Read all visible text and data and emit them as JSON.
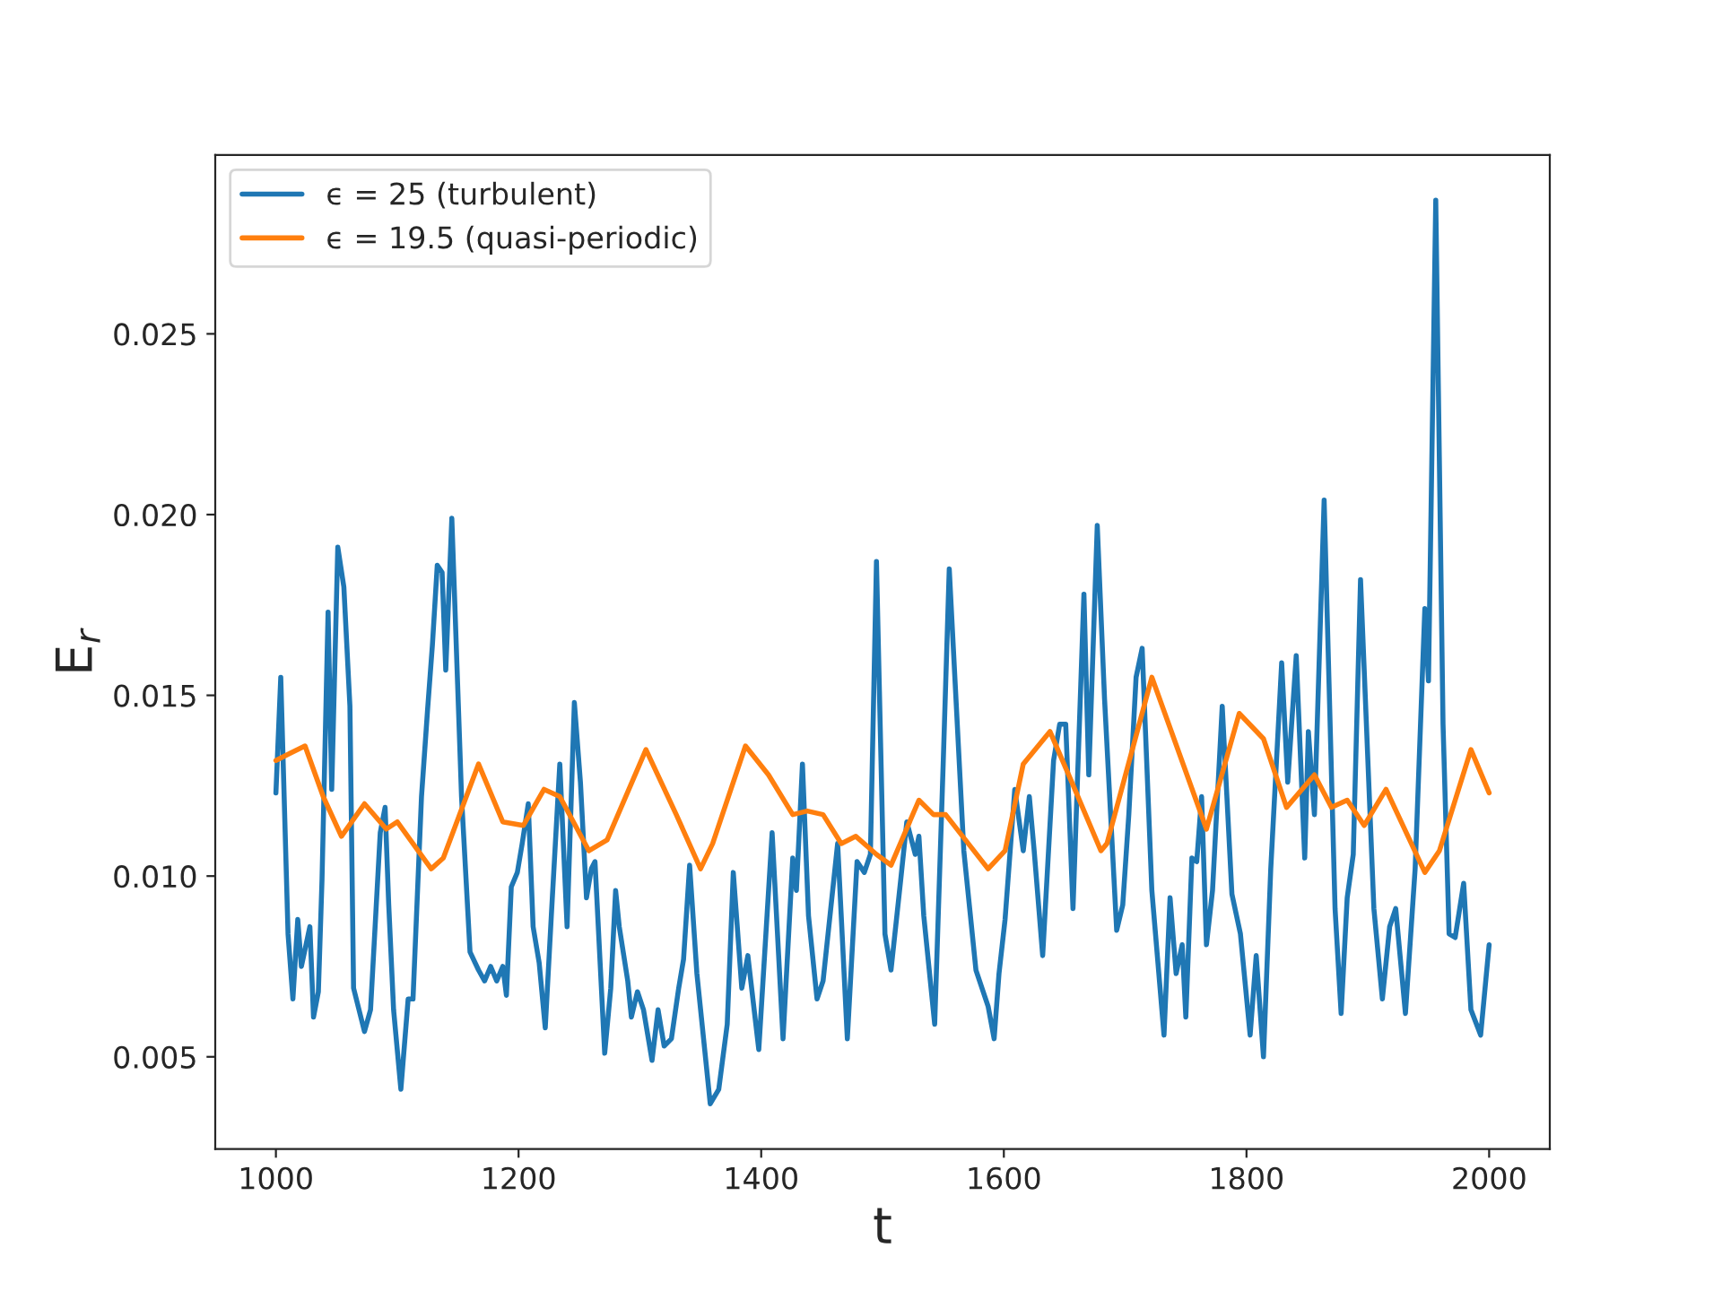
{
  "chart_data": {
    "type": "line",
    "xlabel": "t",
    "ylabel": "E$_{r}$",
    "legend": "top left",
    "grid": false,
    "xlim": [
      950,
      2050
    ],
    "ylim": [
      0.00245,
      0.02995
    ],
    "xticks": [
      1000,
      1200,
      1400,
      1600,
      1800,
      2000
    ],
    "yticks": [
      0.005,
      {
        "value": 0.01,
        "label": "0.010"
      },
      0.015,
      {
        "value": 0.02,
        "label": "0.020"
      },
      0.025
    ],
    "series": [
      {
        "name": "ϵ = 25 (turbulent)",
        "color": "#1f77b4",
        "x": [
          1000,
          1004,
          1010,
          1014,
          1018,
          1021,
          1028,
          1031,
          1035,
          1038,
          1043,
          1046,
          1051,
          1056,
          1061,
          1064,
          1073,
          1078,
          1086,
          1090,
          1093,
          1097,
          1103,
          1109,
          1113,
          1120,
          1125,
          1129,
          1133,
          1137,
          1140,
          1145,
          1153,
          1160,
          1167,
          1172,
          1177,
          1182,
          1187,
          1190,
          1194,
          1199,
          1203,
          1208,
          1212,
          1217,
          1222,
          1227,
          1234,
          1240,
          1246,
          1251,
          1256,
          1260,
          1263,
          1271,
          1276,
          1280,
          1283,
          1290,
          1293,
          1298,
          1303,
          1310,
          1315,
          1320,
          1326,
          1332,
          1336,
          1341,
          1347,
          1358,
          1365,
          1372,
          1377,
          1384,
          1389,
          1398,
          1409,
          1418,
          1426,
          1429,
          1434,
          1439,
          1446,
          1451,
          1463,
          1471,
          1479,
          1485,
          1490,
          1495,
          1502,
          1507,
          1515,
          1520,
          1527,
          1530,
          1534,
          1543,
          1550,
          1555,
          1567,
          1577,
          1587,
          1592,
          1596,
          1601,
          1609,
          1616,
          1621,
          1625,
          1632,
          1641,
          1646,
          1651,
          1657,
          1666,
          1670,
          1677,
          1683,
          1693,
          1698,
          1703,
          1709,
          1714,
          1722,
          1732,
          1737,
          1742,
          1747,
          1750,
          1755,
          1759,
          1763,
          1767,
          1772,
          1780,
          1788,
          1795,
          1803,
          1808,
          1814,
          1820,
          1829,
          1834,
          1841,
          1848,
          1851,
          1856,
          1864,
          1873,
          1878,
          1883,
          1888,
          1894,
          1905,
          1912,
          1918,
          1923,
          1931,
          1939,
          1947,
          1950,
          1956,
          1962,
          1967,
          1972,
          1979,
          1985,
          1993,
          2000
        ],
        "values": [
          0.0123,
          0.0155,
          0.0084,
          0.0066,
          0.0088,
          0.0075,
          0.0086,
          0.0061,
          0.0068,
          0.0099,
          0.0173,
          0.0124,
          0.0191,
          0.018,
          0.0147,
          0.0069,
          0.0057,
          0.0063,
          0.0112,
          0.0119,
          0.0092,
          0.0063,
          0.0041,
          0.0066,
          0.0066,
          0.0122,
          0.0146,
          0.0164,
          0.0186,
          0.0184,
          0.0157,
          0.0199,
          0.0122,
          0.0079,
          0.0074,
          0.0071,
          0.0075,
          0.0071,
          0.0075,
          0.0067,
          0.0097,
          0.0101,
          0.0109,
          0.012,
          0.0086,
          0.0076,
          0.0058,
          0.0089,
          0.0131,
          0.0086,
          0.0148,
          0.0126,
          0.0094,
          0.0102,
          0.0104,
          0.0051,
          0.0069,
          0.0096,
          0.0086,
          0.0071,
          0.0061,
          0.0068,
          0.0063,
          0.0049,
          0.0063,
          0.0053,
          0.0055,
          0.0069,
          0.0077,
          0.0103,
          0.0073,
          0.0037,
          0.0041,
          0.0059,
          0.0101,
          0.0069,
          0.0078,
          0.0052,
          0.0112,
          0.0055,
          0.0105,
          0.0096,
          0.0131,
          0.0089,
          0.0066,
          0.0071,
          0.0109,
          0.0055,
          0.0104,
          0.0101,
          0.0106,
          0.0187,
          0.0084,
          0.0074,
          0.0099,
          0.0115,
          0.0106,
          0.0111,
          0.0089,
          0.0059,
          0.0131,
          0.0185,
          0.0107,
          0.0074,
          0.0064,
          0.0055,
          0.0073,
          0.0088,
          0.0124,
          0.0107,
          0.0122,
          0.0107,
          0.0078,
          0.0132,
          0.0142,
          0.0142,
          0.0091,
          0.0178,
          0.0128,
          0.0197,
          0.0149,
          0.0085,
          0.0092,
          0.0117,
          0.0155,
          0.0163,
          0.0096,
          0.0056,
          0.0094,
          0.0073,
          0.0081,
          0.0061,
          0.0105,
          0.0104,
          0.0122,
          0.0081,
          0.0096,
          0.0147,
          0.0095,
          0.0084,
          0.0056,
          0.0078,
          0.005,
          0.0102,
          0.0159,
          0.0126,
          0.0161,
          0.0105,
          0.014,
          0.0117,
          0.0204,
          0.0091,
          0.0062,
          0.0094,
          0.0106,
          0.0182,
          0.0091,
          0.0066,
          0.0086,
          0.0091,
          0.0062,
          0.0102,
          0.0174,
          0.0154,
          0.0287,
          0.0142,
          0.0084,
          0.0083,
          0.0098,
          0.0063,
          0.0056,
          0.0081
        ]
      },
      {
        "name": "ϵ = 19.5 (quasi-periodic)",
        "color": "#ff7f0e",
        "x": [
          1000,
          1012,
          1024,
          1039,
          1054,
          1073,
          1091,
          1100,
          1128,
          1138,
          1167,
          1187,
          1204,
          1221,
          1234,
          1258,
          1273,
          1305,
          1330,
          1350,
          1360,
          1387,
          1406,
          1426,
          1438,
          1451,
          1466,
          1478,
          1495,
          1507,
          1530,
          1542,
          1552,
          1587,
          1601,
          1616,
          1638,
          1656,
          1680,
          1685,
          1722,
          1767,
          1794,
          1814,
          1833,
          1856,
          1870,
          1883,
          1897,
          1915,
          1947,
          1959,
          1985,
          2000
        ],
        "values": [
          0.0132,
          0.0134,
          0.0136,
          0.0122,
          0.0111,
          0.012,
          0.0113,
          0.0115,
          0.0102,
          0.0105,
          0.0131,
          0.0115,
          0.0114,
          0.0124,
          0.0122,
          0.0107,
          0.011,
          0.0135,
          0.0117,
          0.0102,
          0.0109,
          0.0136,
          0.0128,
          0.0117,
          0.0118,
          0.0117,
          0.0109,
          0.0111,
          0.0106,
          0.0103,
          0.0121,
          0.0117,
          0.0117,
          0.0102,
          0.0107,
          0.0131,
          0.014,
          0.0126,
          0.0107,
          0.0109,
          0.0155,
          0.0113,
          0.0145,
          0.0138,
          0.0119,
          0.0128,
          0.0119,
          0.0121,
          0.0114,
          0.0124,
          0.0101,
          0.0107,
          0.0135,
          0.0123
        ]
      }
    ]
  }
}
